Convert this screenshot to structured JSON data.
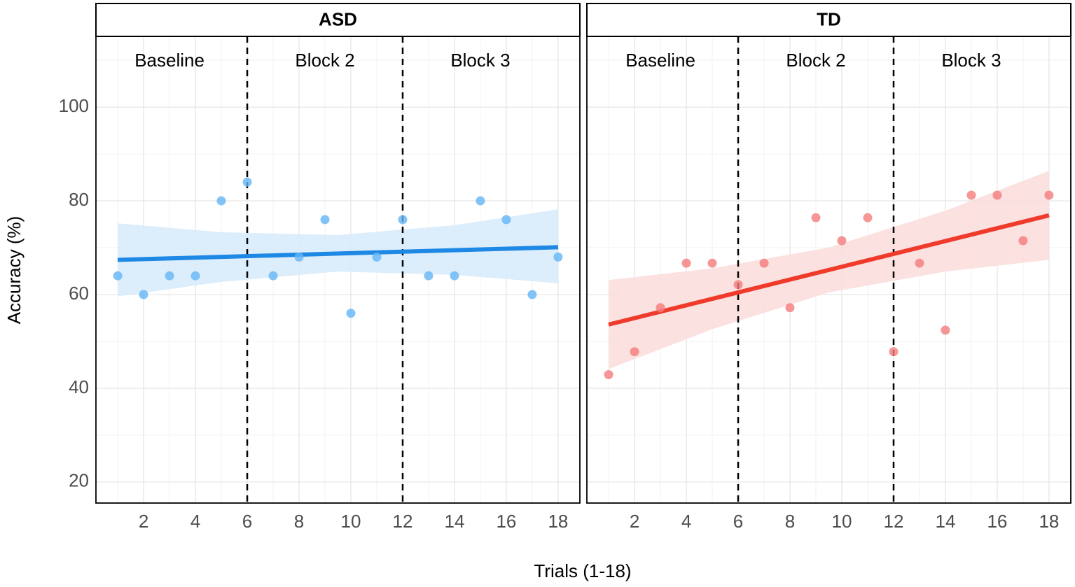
{
  "axis_labels": {
    "x": "Trials (1-18)",
    "y": "Accuracy (%)"
  },
  "chart_data": [
    {
      "type": "scatter",
      "title": "ASD",
      "x": [
        1,
        2,
        3,
        4,
        5,
        6,
        7,
        8,
        9,
        10,
        11,
        12,
        13,
        14,
        15,
        16,
        17,
        18
      ],
      "points": {
        "color": "#64b5f6",
        "values": [
          64,
          60,
          64,
          64,
          80,
          84,
          64,
          68,
          76,
          56,
          68,
          76,
          64,
          64,
          80,
          76,
          60,
          68
        ]
      },
      "fit": {
        "color": "#1e88e5",
        "x": [
          1,
          18
        ],
        "values": [
          67.4,
          70.1
        ]
      },
      "ribbon": {
        "color": "#d6eafa",
        "x": [
          1,
          5,
          9.5,
          14,
          18
        ],
        "lower": [
          59.6,
          62.7,
          64.9,
          64.2,
          62.4
        ],
        "upper": [
          75.2,
          73.3,
          72.7,
          74.8,
          78.2
        ]
      },
      "vlines": [
        6,
        12
      ],
      "annotations": [
        {
          "text": "Baseline",
          "x": 3,
          "y": 109.7
        },
        {
          "text": "Block 2",
          "x": 9,
          "y": 109.7
        },
        {
          "text": "Block 3",
          "x": 15,
          "y": 109.7
        }
      ],
      "xlim": [
        0.16,
        18.84
      ],
      "ylim": [
        15.5,
        115.1
      ],
      "xticks": [
        2,
        4,
        6,
        8,
        10,
        12,
        14,
        16,
        18
      ],
      "yticks": [
        20,
        40,
        60,
        80,
        100
      ],
      "grid": true
    },
    {
      "type": "scatter",
      "title": "TD",
      "x": [
        1,
        2,
        3,
        4,
        5,
        6,
        7,
        8,
        9,
        10,
        11,
        12,
        13,
        14,
        15,
        16,
        17,
        18
      ],
      "points": {
        "color": "#f47c7c",
        "values": [
          42.9,
          47.8,
          57.2,
          66.7,
          66.7,
          62.1,
          66.7,
          57.2,
          76.4,
          71.5,
          76.4,
          47.8,
          66.7,
          52.4,
          81.2,
          81.2,
          71.5,
          81.2
        ]
      },
      "fit": {
        "color": "#ef3b2c",
        "x": [
          1,
          18
        ],
        "values": [
          53.6,
          76.9
        ]
      },
      "ribbon": {
        "color": "#fcdcdc",
        "x": [
          1,
          5,
          9.5,
          14,
          18
        ],
        "lower": [
          44.1,
          52.6,
          60.45,
          64.9,
          67.4
        ],
        "upper": [
          63.1,
          65.6,
          70.05,
          77.9,
          86.4
        ]
      },
      "vlines": [
        6,
        12
      ],
      "annotations": [
        {
          "text": "Baseline",
          "x": 3,
          "y": 109.7
        },
        {
          "text": "Block 2",
          "x": 9,
          "y": 109.7
        },
        {
          "text": "Block 3",
          "x": 15,
          "y": 109.7
        }
      ],
      "xlim": [
        0.16,
        18.84
      ],
      "ylim": [
        15.5,
        115.1
      ],
      "xticks": [
        2,
        4,
        6,
        8,
        10,
        12,
        14,
        16,
        18
      ],
      "yticks": [
        20,
        40,
        60,
        80,
        100
      ],
      "grid": true
    }
  ]
}
